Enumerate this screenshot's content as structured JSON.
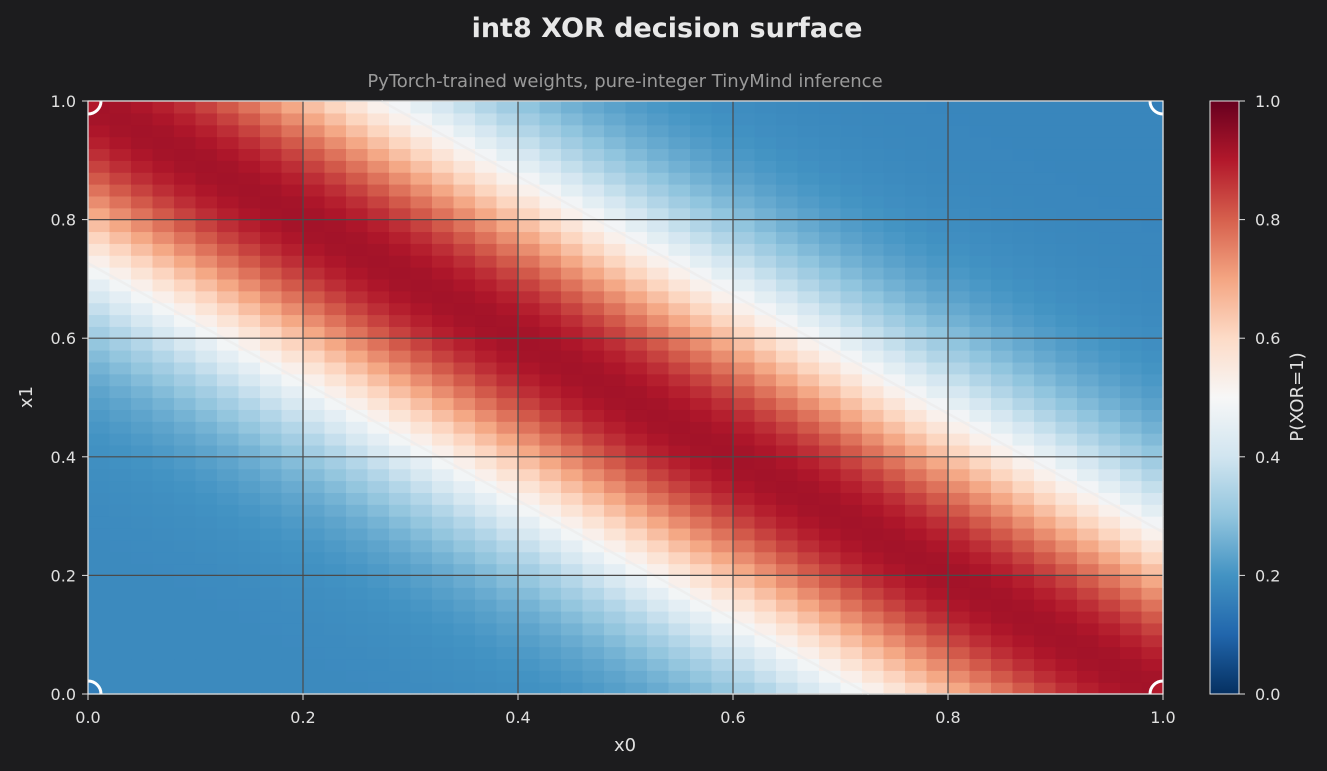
{
  "chart_data": {
    "type": "heatmap",
    "title": "int8 XOR decision surface",
    "subtitle": "PyTorch-trained weights, pure-integer TinyMind inference",
    "xlabel": "x0",
    "ylabel": "x1",
    "xlim": [
      0.0,
      1.0
    ],
    "ylim": [
      0.0,
      1.0
    ],
    "grid": true,
    "colormap": "RdBu_r",
    "x_ticks": [
      "0.0",
      "0.2",
      "0.4",
      "0.6",
      "0.8",
      "1.0"
    ],
    "y_ticks": [
      "0.0",
      "0.2",
      "0.4",
      "0.6",
      "0.8",
      "1.0"
    ],
    "resolution": [
      50,
      50
    ],
    "colorbar": {
      "label": "P(XOR=1)",
      "range": [
        0.0,
        1.0
      ],
      "ticks": [
        "0.0",
        "0.2",
        "0.4",
        "0.6",
        "0.8",
        "1.0"
      ]
    },
    "decision_contour_level": 0.5,
    "corner_points": [
      {
        "x0": 0,
        "x1": 0,
        "label": 0
      },
      {
        "x0": 0,
        "x1": 1,
        "label": 1
      },
      {
        "x0": 1,
        "x1": 0,
        "label": 1
      },
      {
        "x0": 1,
        "x1": 1,
        "label": 0
      }
    ],
    "surface": {
      "peak": 0.92,
      "ridge_width": 0.3,
      "corner_00_value": 0.18,
      "corner_11_value": 0.17
    }
  },
  "colors": {
    "background": "#1c1c1e",
    "grid": "#4a4a4a",
    "contour": "#ececec",
    "cmap_stops": [
      "#053061",
      "#2166ac",
      "#4393c3",
      "#92c5de",
      "#d1e5f0",
      "#f7f7f7",
      "#fddbc7",
      "#f4a582",
      "#d6604d",
      "#b2182b",
      "#67001f"
    ]
  }
}
